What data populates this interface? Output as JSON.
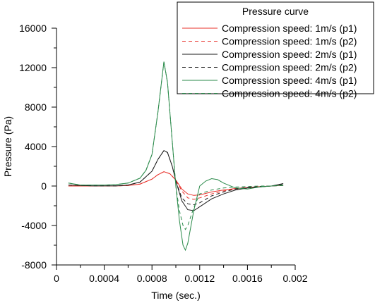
{
  "chart_data": {
    "type": "line",
    "title": "",
    "xlabel": "Time (sec.)",
    "ylabel": "Pressure (Pa)",
    "xlim": [
      0,
      0.002
    ],
    "ylim": [
      -8000,
      16000
    ],
    "x_ticks": [
      0,
      0.0004,
      0.0008,
      0.0012,
      0.0016,
      0.002
    ],
    "x_tick_labels": [
      "0",
      "0.0004",
      "0.0008",
      "0.0012",
      "0.0016",
      "0.002"
    ],
    "y_ticks": [
      -8000,
      -4000,
      0,
      4000,
      8000,
      12000,
      16000
    ],
    "y_tick_labels": [
      "-8000",
      "-4000",
      "0",
      "4000",
      "8000",
      "12000",
      "16000"
    ],
    "grid": false,
    "legend": {
      "title": "Pressure curve",
      "placement": "top-right"
    },
    "series": [
      {
        "name": "Compression speed: 1m/s (p1)",
        "color": "#e8302a",
        "dash": "solid",
        "points": [
          [
            0.0001,
            0
          ],
          [
            0.0003,
            0
          ],
          [
            0.0005,
            10
          ],
          [
            0.0006,
            50
          ],
          [
            0.0007,
            200
          ],
          [
            0.0008,
            700
          ],
          [
            0.00085,
            1150
          ],
          [
            0.0009,
            1450
          ],
          [
            0.00095,
            1250
          ],
          [
            0.001,
            600
          ],
          [
            0.00105,
            -300
          ],
          [
            0.0011,
            -800
          ],
          [
            0.00115,
            -950
          ],
          [
            0.0012,
            -900
          ],
          [
            0.0013,
            -600
          ],
          [
            0.0014,
            -400
          ],
          [
            0.0015,
            -250
          ],
          [
            0.0016,
            -150
          ],
          [
            0.0017,
            -60
          ],
          [
            0.0018,
            0
          ],
          [
            0.0019,
            80
          ]
        ]
      },
      {
        "name": "Compression speed: 1m/s (p2)",
        "color": "#e8302a",
        "dash": "dashed",
        "points": [
          [
            0.0001,
            0
          ],
          [
            0.0003,
            0
          ],
          [
            0.0005,
            10
          ],
          [
            0.0006,
            50
          ],
          [
            0.0007,
            200
          ],
          [
            0.0008,
            700
          ],
          [
            0.00085,
            1150
          ],
          [
            0.0009,
            1450
          ],
          [
            0.00095,
            1250
          ],
          [
            0.001,
            600
          ],
          [
            0.00105,
            -500
          ],
          [
            0.0011,
            -1200
          ],
          [
            0.00115,
            -1350
          ],
          [
            0.0012,
            -1200
          ],
          [
            0.0013,
            -800
          ],
          [
            0.0014,
            -500
          ],
          [
            0.0015,
            -300
          ],
          [
            0.0016,
            -150
          ],
          [
            0.0017,
            -60
          ],
          [
            0.0018,
            0
          ],
          [
            0.0019,
            60
          ]
        ]
      },
      {
        "name": "Compression speed: 2m/s (p1)",
        "color": "#1a1a1a",
        "dash": "solid",
        "points": [
          [
            0.0001,
            100
          ],
          [
            0.0003,
            20
          ],
          [
            0.0005,
            20
          ],
          [
            0.0006,
            100
          ],
          [
            0.0007,
            400
          ],
          [
            0.0008,
            1500
          ],
          [
            0.00085,
            2700
          ],
          [
            0.0009,
            3600
          ],
          [
            0.00093,
            3400
          ],
          [
            0.00097,
            2000
          ],
          [
            0.001,
            500
          ],
          [
            0.00105,
            -1500
          ],
          [
            0.0011,
            -2400
          ],
          [
            0.00115,
            -2500
          ],
          [
            0.0012,
            -2100
          ],
          [
            0.0013,
            -1300
          ],
          [
            0.0014,
            -800
          ],
          [
            0.0015,
            -400
          ],
          [
            0.0016,
            -200
          ],
          [
            0.0017,
            -100
          ],
          [
            0.0018,
            0
          ],
          [
            0.0019,
            250
          ]
        ]
      },
      {
        "name": "Compression speed: 2m/s (p2)",
        "color": "#1a1a1a",
        "dash": "dashed",
        "points": [
          [
            0.0001,
            100
          ],
          [
            0.0003,
            20
          ],
          [
            0.0005,
            20
          ],
          [
            0.0006,
            100
          ],
          [
            0.0007,
            400
          ],
          [
            0.0008,
            1500
          ],
          [
            0.00085,
            2700
          ],
          [
            0.0009,
            3600
          ],
          [
            0.00093,
            3400
          ],
          [
            0.00097,
            2000
          ],
          [
            0.001,
            500
          ],
          [
            0.00105,
            -1200
          ],
          [
            0.0011,
            -1800
          ],
          [
            0.00115,
            -1900
          ],
          [
            0.0012,
            -1700
          ],
          [
            0.0013,
            -1000
          ],
          [
            0.0014,
            -600
          ],
          [
            0.0015,
            -300
          ],
          [
            0.0016,
            -150
          ],
          [
            0.0017,
            -50
          ],
          [
            0.0018,
            0
          ],
          [
            0.0019,
            150
          ]
        ]
      },
      {
        "name": "Compression speed: 4m/s (p1)",
        "color": "#2a8a4a",
        "dash": "solid",
        "points": [
          [
            0.0001,
            300
          ],
          [
            0.0002,
            100
          ],
          [
            0.0004,
            100
          ],
          [
            0.0005,
            150
          ],
          [
            0.0006,
            300
          ],
          [
            0.0007,
            800
          ],
          [
            0.00075,
            1600
          ],
          [
            0.0008,
            3200
          ],
          [
            0.00085,
            7500
          ],
          [
            0.0009,
            12600
          ],
          [
            0.00093,
            10500
          ],
          [
            0.00097,
            4500
          ],
          [
            0.001,
            0
          ],
          [
            0.00103,
            -3500
          ],
          [
            0.00106,
            -6000
          ],
          [
            0.00108,
            -6500
          ],
          [
            0.0011,
            -5800
          ],
          [
            0.00115,
            -2500
          ],
          [
            0.0012,
            0
          ],
          [
            0.00125,
            500
          ],
          [
            0.0013,
            750
          ],
          [
            0.00135,
            650
          ],
          [
            0.0014,
            300
          ],
          [
            0.0015,
            -200
          ],
          [
            0.0016,
            -300
          ],
          [
            0.0017,
            -100
          ],
          [
            0.0018,
            0
          ],
          [
            0.0019,
            100
          ]
        ]
      },
      {
        "name": "Compression speed: 4m/s (p2)",
        "color": "#2a8a4a",
        "dash": "dashed",
        "points": [
          [
            0.0001,
            300
          ],
          [
            0.0002,
            100
          ],
          [
            0.0004,
            100
          ],
          [
            0.0005,
            150
          ],
          [
            0.0006,
            300
          ],
          [
            0.0007,
            800
          ],
          [
            0.00075,
            1600
          ],
          [
            0.0008,
            3200
          ],
          [
            0.00085,
            7500
          ],
          [
            0.0009,
            12600
          ],
          [
            0.00093,
            10500
          ],
          [
            0.00097,
            4500
          ],
          [
            0.001,
            0
          ],
          [
            0.00103,
            -2500
          ],
          [
            0.00106,
            -4000
          ],
          [
            0.00108,
            -4400
          ],
          [
            0.0011,
            -4000
          ],
          [
            0.00115,
            -2200
          ],
          [
            0.0012,
            -800
          ],
          [
            0.0013,
            -400
          ],
          [
            0.0014,
            -200
          ],
          [
            0.0015,
            -100
          ],
          [
            0.0016,
            -50
          ],
          [
            0.0017,
            0
          ],
          [
            0.0018,
            0
          ],
          [
            0.0019,
            50
          ]
        ]
      }
    ]
  }
}
